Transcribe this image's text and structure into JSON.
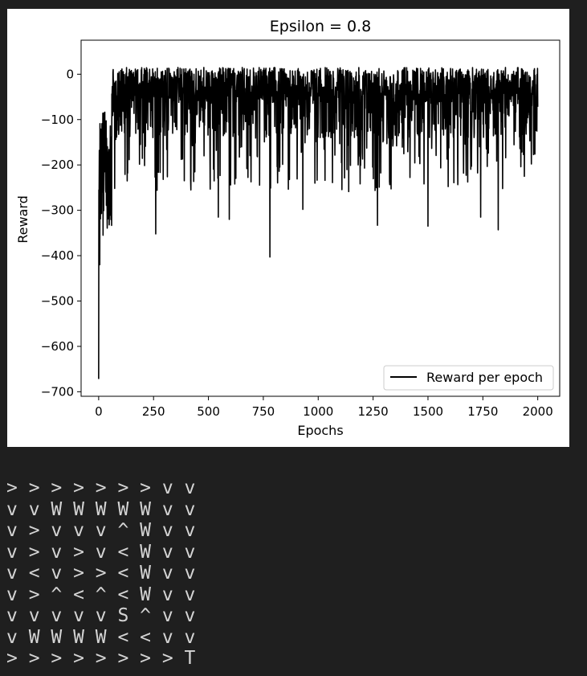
{
  "chart_data": {
    "type": "line",
    "title": "Epsilon = 0.8",
    "xlabel": "Epochs",
    "ylabel": "Reward",
    "xlim": [
      -80,
      2100
    ],
    "ylim": [
      -710,
      75
    ],
    "x_ticks": [
      0,
      250,
      500,
      750,
      1000,
      1250,
      1500,
      1750,
      2000
    ],
    "y_ticks": [
      0,
      -100,
      -200,
      -300,
      -400,
      -500,
      -600,
      -700
    ],
    "grid": false,
    "legend_position": "lower-right",
    "series": [
      {
        "name": "Reward per epoch",
        "color": "#000000",
        "n_points": 2001,
        "summary": {
          "min": -672,
          "typical_low": -140,
          "typical_high": 15,
          "max": 32
        },
        "notable_dips": [
          {
            "x": 0,
            "y": -672
          },
          {
            "x": 5,
            "y": -420
          },
          {
            "x": 20,
            "y": -355
          },
          {
            "x": 260,
            "y": -352
          },
          {
            "x": 545,
            "y": -315
          },
          {
            "x": 595,
            "y": -320
          },
          {
            "x": 780,
            "y": -403
          },
          {
            "x": 930,
            "y": -298
          },
          {
            "x": 1270,
            "y": -333
          },
          {
            "x": 1500,
            "y": -335
          },
          {
            "x": 1740,
            "y": -315
          },
          {
            "x": 1820,
            "y": -343
          }
        ]
      }
    ]
  },
  "grid_output": {
    "rows": [
      "> > > > > > > v v",
      "v v W W W W W v v",
      "v > v v v ^ W v v",
      "v > v > v < W v v",
      "v < v > > < W v v",
      "v > ^ < ^ < W v v",
      "v v v v v S ^ v v",
      "v W W W W < < v v",
      "> > > > > > > > T"
    ]
  }
}
